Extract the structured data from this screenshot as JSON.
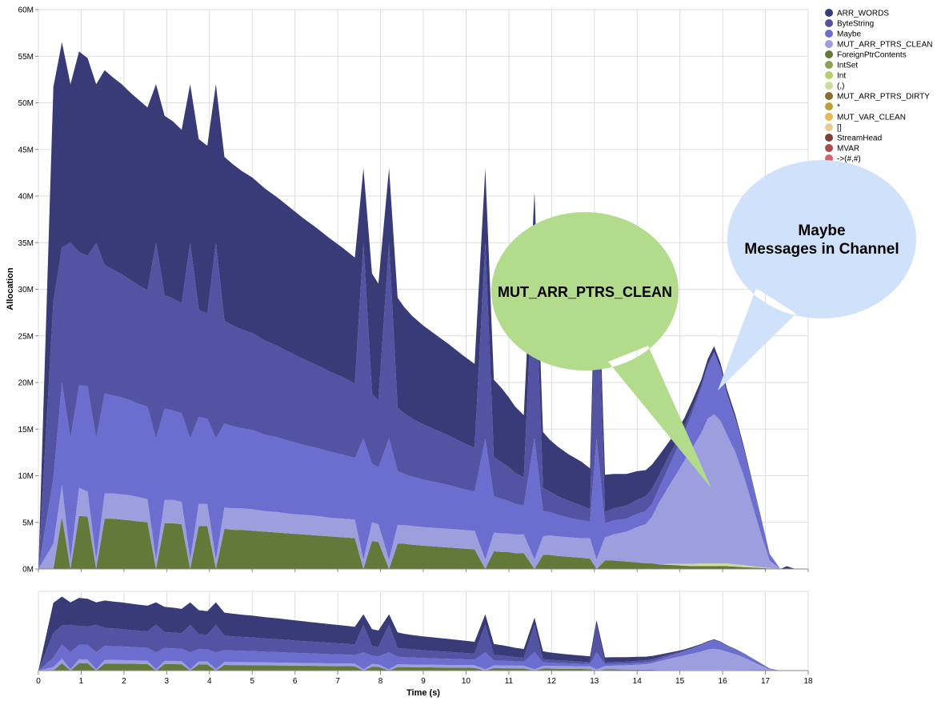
{
  "chart_data": [
    {
      "type": "area",
      "stacked": true,
      "ylabel": "Allocation",
      "xlabel": "",
      "xlim": [
        0,
        18
      ],
      "ylim": [
        0,
        60000000
      ],
      "y_ticks": [
        "0M",
        "5M",
        "10M",
        "15M",
        "20M",
        "25M",
        "30M",
        "35M",
        "40M",
        "45M",
        "50M",
        "55M",
        "60M"
      ],
      "grid": true,
      "legend_position": "top-right",
      "legend": [
        {
          "name": "ARR_WORDS",
          "color": "#393b79"
        },
        {
          "name": "ByteString",
          "color": "#5254a3"
        },
        {
          "name": "Maybe",
          "color": "#6b6ecf"
        },
        {
          "name": "MUT_ARR_PTRS_CLEAN",
          "color": "#9c9ede"
        },
        {
          "name": "ForeignPtrContents",
          "color": "#637939"
        },
        {
          "name": "IntSet",
          "color": "#8ca252"
        },
        {
          "name": "Int",
          "color": "#b5cf6b"
        },
        {
          "name": "(,)",
          "color": "#cedb9c"
        },
        {
          "name": "MUT_ARR_PTRS_DIRTY",
          "color": "#8c6d31"
        },
        {
          "name": "*",
          "color": "#bd9e39"
        },
        {
          "name": "MUT_VAR_CLEAN",
          "color": "#e7ba52"
        },
        {
          "name": "[]",
          "color": "#e7cb94"
        },
        {
          "name": "StreamHead",
          "color": "#843c39"
        },
        {
          "name": "MVAR",
          "color": "#ad494a"
        },
        {
          "name": "->(#,#)",
          "color": "#d6616b"
        }
      ],
      "x": [
        0,
        0.35,
        0.55,
        0.75,
        0.95,
        1.15,
        1.35,
        1.55,
        1.75,
        1.95,
        2.15,
        2.35,
        2.55,
        2.75,
        2.95,
        3.15,
        3.35,
        3.55,
        3.75,
        3.95,
        4.15,
        4.35,
        4.55,
        4.75,
        5,
        5.3,
        5.6,
        5.9,
        6.2,
        6.5,
        6.8,
        7.1,
        7.4,
        7.6,
        7.8,
        7.95,
        8.2,
        8.4,
        8.55,
        8.75,
        9,
        9.3,
        9.6,
        9.9,
        10.2,
        10.45,
        10.65,
        10.85,
        11,
        11.15,
        11.35,
        11.6,
        11.8,
        11.95,
        12.15,
        12.4,
        12.7,
        12.9,
        13.05,
        13.25,
        13.45,
        13.75,
        14,
        14.2,
        14.35,
        14.5,
        14.7,
        14.9,
        15.1,
        15.3,
        15.5,
        15.65,
        15.8,
        15.95,
        16.1,
        16.3,
        16.5,
        16.7,
        16.9,
        17.1,
        17.35,
        17.5,
        17.7
      ],
      "series": [
        {
          "name": "ForeignPtrContents",
          "values": [
            0,
            0,
            5.6,
            0,
            5.7,
            5.6,
            0,
            5.4,
            5.4,
            5.3,
            5.2,
            5.1,
            5.0,
            0,
            4.9,
            4.9,
            4.8,
            0,
            4.6,
            4.6,
            0,
            4.3,
            4.2,
            4.2,
            4.1,
            4.0,
            3.9,
            3.8,
            3.7,
            3.6,
            3.5,
            3.4,
            3.3,
            0,
            3.0,
            2.9,
            0,
            2.7,
            2.7,
            2.6,
            2.5,
            2.4,
            2.3,
            2.2,
            2.1,
            0,
            1.9,
            1.8,
            1.8,
            1.7,
            1.7,
            0,
            1.5,
            1.5,
            1.4,
            1.3,
            1.2,
            1.1,
            0,
            0.9,
            0.9,
            0.8,
            0.7,
            0.6,
            0.6,
            0.5,
            0.45,
            0.4,
            0.35,
            0.3,
            0.3,
            0.3,
            0.3,
            0.3,
            0.3,
            0.25,
            0.2,
            0.15,
            0.1,
            0.05,
            0,
            0,
            0
          ]
        },
        {
          "name": "(,)",
          "values": [
            0,
            0,
            0,
            0,
            0,
            0,
            0,
            0,
            0,
            0,
            0,
            0,
            0,
            0,
            0,
            0,
            0,
            0,
            0,
            0,
            0,
            0,
            0,
            0,
            0,
            0,
            0,
            0,
            0,
            0,
            0,
            0,
            0,
            0,
            0,
            0,
            0,
            0,
            0,
            0,
            0,
            0,
            0,
            0,
            0,
            0,
            0,
            0,
            0,
            0,
            0,
            0,
            0,
            0,
            0,
            0,
            0,
            0,
            0,
            0,
            0,
            0,
            0,
            0,
            0,
            0,
            0.1,
            0.15,
            0.2,
            0.25,
            0.3,
            0.3,
            0.3,
            0.3,
            0.3,
            0.25,
            0.2,
            0.15,
            0.1,
            0.05,
            0,
            0,
            0
          ]
        },
        {
          "name": "MUT_ARR_PTRS_CLEAN",
          "values": [
            0,
            2.7,
            3.4,
            1.0,
            3.0,
            2.7,
            1.0,
            2.7,
            2.7,
            2.7,
            2.7,
            2.6,
            2.5,
            1.0,
            2.5,
            2.5,
            2.4,
            1.0,
            2.4,
            2.4,
            1.0,
            2.3,
            2.3,
            2.3,
            2.3,
            2.2,
            2.2,
            2.1,
            2.1,
            2.1,
            2.0,
            2.0,
            2.0,
            1.0,
            2.0,
            1.9,
            1.0,
            2.0,
            2.0,
            2.0,
            2.0,
            2.0,
            2.0,
            2.0,
            2.0,
            1.0,
            2.0,
            2.0,
            2.0,
            2.0,
            2.0,
            1.0,
            2.0,
            2.1,
            2.1,
            2.1,
            2.1,
            2.2,
            1.0,
            2.5,
            2.8,
            3.2,
            3.8,
            4.2,
            5.0,
            6.5,
            8.0,
            9.5,
            11.0,
            12.5,
            14.0,
            15.5,
            16.0,
            15.3,
            13.8,
            12.0,
            9.5,
            6.5,
            3.5,
            0.8,
            0,
            0,
            0
          ]
        },
        {
          "name": "Maybe",
          "values": [
            0,
            7.0,
            11.0,
            13.0,
            11.0,
            11.3,
            13.0,
            10.7,
            10.5,
            10.4,
            10.2,
            10.0,
            9.9,
            13.0,
            9.8,
            9.6,
            9.5,
            13.0,
            9.3,
            9.1,
            13.0,
            9.0,
            8.8,
            8.6,
            8.5,
            8.2,
            8.0,
            7.8,
            7.5,
            7.3,
            7.1,
            6.9,
            6.6,
            13.0,
            6.3,
            6.1,
            13.0,
            5.8,
            5.5,
            5.3,
            5.1,
            4.9,
            4.7,
            4.4,
            4.2,
            13.0,
            3.9,
            3.7,
            3.5,
            3.3,
            3.1,
            13.0,
            2.7,
            2.5,
            2.3,
            2.1,
            1.9,
            1.8,
            13.0,
            1.5,
            1.5,
            1.4,
            1.4,
            1.4,
            1.4,
            1.5,
            2.0,
            2.5,
            3.0,
            3.8,
            4.8,
            5.6,
            6.6,
            5.6,
            4.3,
            3.5,
            2.8,
            2.2,
            1.6,
            0.6,
            0,
            0,
            0
          ]
        },
        {
          "name": "ByteString",
          "values": [
            0,
            19.0,
            14.5,
            21.0,
            14.3,
            14.0,
            21.0,
            13.8,
            13.5,
            13.2,
            12.9,
            12.7,
            12.5,
            21.0,
            12.2,
            12.0,
            11.8,
            21.0,
            11.5,
            11.3,
            21.0,
            11.0,
            10.8,
            10.6,
            10.4,
            10.1,
            9.8,
            9.5,
            9.2,
            8.9,
            8.6,
            8.3,
            8.0,
            21.0,
            7.5,
            7.2,
            21.0,
            6.8,
            6.5,
            6.2,
            5.9,
            5.6,
            5.3,
            5.0,
            4.7,
            21.0,
            4.2,
            3.9,
            3.6,
            3.3,
            3.0,
            21.0,
            2.5,
            2.2,
            2.0,
            1.8,
            1.6,
            1.3,
            21.0,
            1.2,
            1.3,
            1.4,
            1.5,
            1.6,
            1.6,
            1.4,
            1.2,
            0.9,
            0.7,
            0.5,
            0.3,
            0.2,
            0.1,
            0.1,
            0.1,
            0.1,
            0.1,
            0.1,
            0.1,
            0.05,
            0,
            0,
            0
          ]
        },
        {
          "name": "ARR_WORDS",
          "values": [
            0,
            23.0,
            22.0,
            17.0,
            21.5,
            21.2,
            17.0,
            20.9,
            20.6,
            20.4,
            20.1,
            19.9,
            19.6,
            17.0,
            19.2,
            19.0,
            18.6,
            17.0,
            18.3,
            18.0,
            17.0,
            17.6,
            17.3,
            17.0,
            16.7,
            16.3,
            15.9,
            15.5,
            15.1,
            14.7,
            14.3,
            13.9,
            13.5,
            8.0,
            12.9,
            12.5,
            8.0,
            11.8,
            11.4,
            11.0,
            10.6,
            10.2,
            9.8,
            9.4,
            9.0,
            8.0,
            8.3,
            7.9,
            7.5,
            7.1,
            6.7,
            5.5,
            6.0,
            5.6,
            5.3,
            5.0,
            4.7,
            4.4,
            3.5,
            4.0,
            3.7,
            3.4,
            3.1,
            2.8,
            2.6,
            2.2,
            1.6,
            1.2,
            0.9,
            0.8,
            0.6,
            0.6,
            0.6,
            0.5,
            0.5,
            0.4,
            0.3,
            0.2,
            0.1,
            0.05,
            0,
            0.3,
            0
          ]
        }
      ],
      "unit_note": "values in millions"
    },
    {
      "type": "area",
      "stacked": true,
      "role": "overview",
      "xlabel": "Time (s)",
      "ylabel": "",
      "xlim": [
        0,
        18
      ],
      "x_ticks": [
        "0",
        "1",
        "2",
        "3",
        "4",
        "5",
        "6",
        "7",
        "8",
        "9",
        "10",
        "11",
        "12",
        "13",
        "14",
        "15",
        "16",
        "17",
        "18"
      ]
    }
  ],
  "annotations": [
    {
      "name": "mut-arr-bubble",
      "text": "MUT_ARR_PTRS_CLEAN",
      "color": "#b2dc8b"
    },
    {
      "name": "maybe-bubble",
      "lines": [
        "Maybe",
        "Messages in Channel"
      ],
      "color": "#d0e2fb"
    }
  ]
}
